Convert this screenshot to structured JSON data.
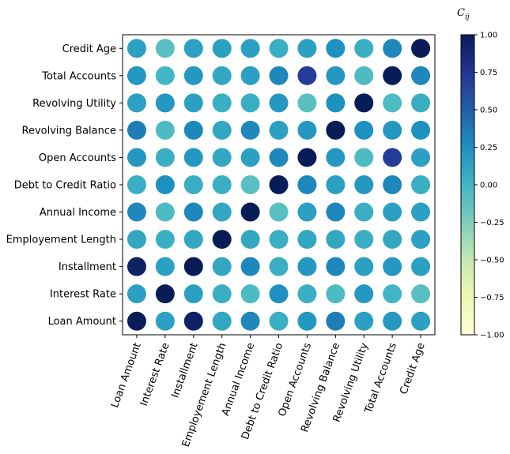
{
  "chart_data": {
    "type": "heatmap",
    "marker": "circle",
    "colormap": "YlGnBu",
    "colormap_stops": [
      "#ffffd9",
      "#edf8b1",
      "#c7e9b4",
      "#7fcdbb",
      "#41b6c4",
      "#1d91c0",
      "#225ea8",
      "#253494",
      "#081d58"
    ],
    "x_categories": [
      "Loan Amount",
      "Interest Rate",
      "Installment",
      "Employement Length",
      "Annual Income",
      "Debt to Credit Ratio",
      "Open Accounts",
      "Revolving Balance",
      "Revolving Utility",
      "Total Accounts",
      "Credit Age"
    ],
    "y_categories": [
      "Loan Amount",
      "Interest Rate",
      "Installment",
      "Employement Length",
      "Annual Income",
      "Debt to Credit Ratio",
      "Open Accounts",
      "Revolving Balance",
      "Revolving Utility",
      "Total Accounts",
      "Credit Age"
    ],
    "values": [
      [
        1.0,
        0.15,
        0.95,
        0.1,
        0.3,
        0.05,
        0.2,
        0.35,
        0.15,
        0.2,
        0.15
      ],
      [
        0.15,
        1.0,
        0.15,
        0.05,
        -0.05,
        0.25,
        0.05,
        -0.05,
        0.2,
        0.0,
        -0.1
      ],
      [
        0.95,
        0.15,
        1.0,
        0.1,
        0.3,
        0.05,
        0.2,
        0.3,
        0.15,
        0.2,
        0.15
      ],
      [
        0.1,
        0.05,
        0.1,
        1.0,
        0.1,
        0.05,
        0.1,
        0.1,
        0.05,
        0.1,
        0.15
      ],
      [
        0.3,
        -0.05,
        0.3,
        0.1,
        1.0,
        -0.1,
        0.15,
        0.3,
        0.05,
        0.15,
        0.15
      ],
      [
        0.05,
        0.25,
        0.05,
        0.05,
        -0.1,
        1.0,
        0.3,
        0.15,
        0.2,
        0.3,
        0.05
      ],
      [
        0.2,
        0.05,
        0.2,
        0.1,
        0.15,
        0.3,
        1.0,
        0.2,
        -0.05,
        0.7,
        0.15
      ],
      [
        0.35,
        -0.05,
        0.3,
        0.1,
        0.3,
        0.15,
        0.2,
        1.0,
        0.25,
        0.2,
        0.25
      ],
      [
        0.15,
        0.2,
        0.15,
        0.05,
        0.05,
        0.2,
        -0.1,
        0.25,
        1.0,
        -0.05,
        0.05
      ],
      [
        0.2,
        0.0,
        0.2,
        0.1,
        0.15,
        0.3,
        0.7,
        0.2,
        -0.05,
        1.0,
        0.3
      ],
      [
        0.15,
        -0.1,
        0.15,
        0.15,
        0.15,
        0.05,
        0.15,
        0.25,
        0.05,
        0.3,
        1.0
      ]
    ],
    "colorbar": {
      "title": "C_ij",
      "title_main": "C",
      "title_sub": "ij",
      "range": [
        -1.0,
        1.0
      ],
      "ticks": [
        1.0,
        0.75,
        0.5,
        0.25,
        0.0,
        -0.25,
        -0.5,
        -0.75,
        -1.0
      ],
      "tick_labels": [
        "1.00",
        "0.75",
        "0.50",
        "0.25",
        "0.00",
        "−0.25",
        "−0.50",
        "−0.75",
        "−1.00"
      ]
    },
    "title": "",
    "xlabel": "",
    "ylabel": "",
    "grid": false,
    "x_tick_rotation_deg": 70
  }
}
